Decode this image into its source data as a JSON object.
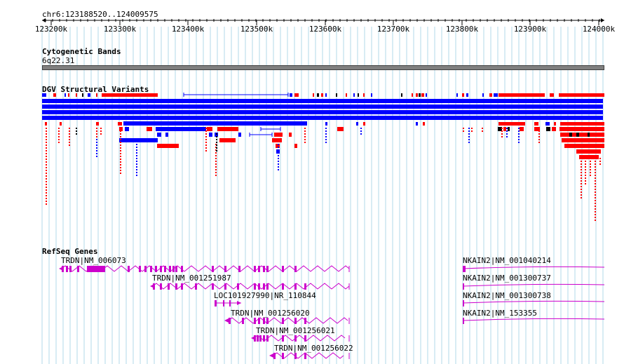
{
  "browser": {
    "region": "chr6:123188520..124009575",
    "ruler_ticks": [
      "123200k",
      "123300k",
      "123400k",
      "123500k",
      "123600k",
      "123700k",
      "123800k",
      "123900k",
      "124000k"
    ]
  },
  "tracks": {
    "cytoband": {
      "title": "Cytogenetic Bands",
      "band": "6q22.31"
    },
    "dgv": {
      "title": "DGV Structural Variants"
    },
    "refseq": {
      "title": "RefSeq Genes",
      "genes": [
        "TRDN|NM_006073",
        "TRDN|NM_001251987",
        "LOC101927990|NR_110844",
        "TRDN|NM_001256020",
        "TRDN|NM_001256021",
        "TRDN|NM_001256022",
        "NKAIN2|NM_001040214",
        "NKAIN2|NM_001300737",
        "NKAIN2|NM_001300738",
        "NKAIN2|NM_153355"
      ]
    }
  },
  "colors": {
    "loss": "#ff0000",
    "gain": "#0000ff",
    "other": "#000000",
    "gene": "#cc00cc",
    "grid": "#b0d8e8",
    "band": "#808080"
  }
}
